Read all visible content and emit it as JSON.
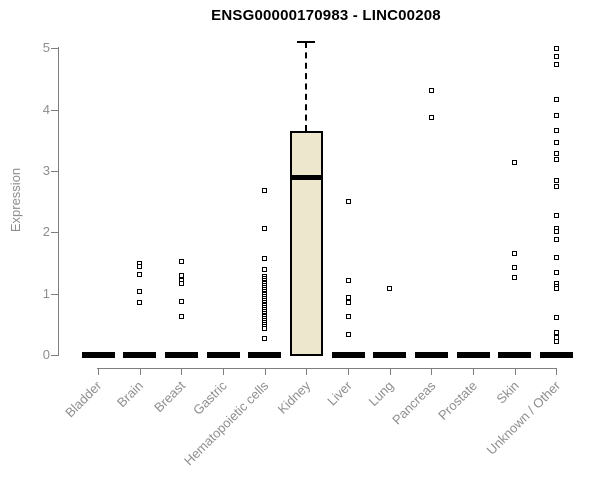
{
  "chart_data": {
    "type": "boxplot",
    "title": "ENSG00000170983 - LINC00208",
    "xlabel": "",
    "ylabel": "Expression",
    "yticks": [
      0,
      1,
      2,
      3,
      4,
      5
    ],
    "ylim": [
      0,
      5.15
    ],
    "grid": false,
    "legend": null,
    "box_fill_color": "#ece7cd",
    "box_stroke_color": "#000000",
    "axis_color": "#7e7e7e",
    "label_color": "#8e8e8e",
    "categories": [
      "Bladder",
      "Brain",
      "Breast",
      "Gastric",
      "Hematopoietic cells",
      "Kidney",
      "Liver",
      "Lung",
      "Pancreas",
      "Prostate",
      "Skin",
      "Unknown / Other"
    ],
    "series": [
      {
        "category": "Bladder",
        "q1": 0,
        "median": 0,
        "q3": 0,
        "whisker_low": 0,
        "whisker_high": 0,
        "outliers": []
      },
      {
        "category": "Brain",
        "q1": 0,
        "median": 0,
        "q3": 0,
        "whisker_low": 0,
        "whisker_high": 0,
        "outliers": [
          1.5,
          1.44,
          1.31,
          1.03,
          0.86
        ]
      },
      {
        "category": "Breast",
        "q1": 0,
        "median": 0,
        "q3": 0,
        "whisker_low": 0,
        "whisker_high": 0,
        "outliers": [
          1.52,
          1.29,
          1.21,
          1.17,
          0.87,
          0.62
        ]
      },
      {
        "category": "Gastric",
        "q1": 0,
        "median": 0,
        "q3": 0,
        "whisker_low": 0,
        "whisker_high": 0,
        "outliers": []
      },
      {
        "category": "Hematopoietic cells",
        "q1": 0,
        "median": 0,
        "q3": 0,
        "whisker_low": 0,
        "whisker_high": 0,
        "outliers": [
          2.68,
          2.07,
          1.58,
          1.39,
          1.28,
          1.25,
          1.22,
          1.19,
          1.16,
          1.13,
          1.1,
          1.07,
          1.04,
          1.01,
          0.98,
          0.95,
          0.92,
          0.89,
          0.86,
          0.83,
          0.8,
          0.77,
          0.74,
          0.71,
          0.68,
          0.65,
          0.62,
          0.59,
          0.56,
          0.53,
          0.5,
          0.47,
          0.44,
          0.27
        ]
      },
      {
        "category": "Kidney",
        "q1": 0,
        "median": 2.9,
        "q3": 3.65,
        "whisker_low": 0,
        "whisker_high": 5.1,
        "outliers": []
      },
      {
        "category": "Liver",
        "q1": 0,
        "median": 0,
        "q3": 0,
        "whisker_low": 0,
        "whisker_high": 0,
        "outliers": [
          2.5,
          1.21,
          0.93,
          0.85,
          0.62,
          0.34
        ]
      },
      {
        "category": "Lung",
        "q1": 0,
        "median": 0,
        "q3": 0,
        "whisker_low": 0,
        "whisker_high": 0,
        "outliers": [
          1.08
        ]
      },
      {
        "category": "Pancreas",
        "q1": 0,
        "median": 0,
        "q3": 0,
        "whisker_low": 0,
        "whisker_high": 0,
        "outliers": [
          4.31,
          3.87
        ]
      },
      {
        "category": "Prostate",
        "q1": 0,
        "median": 0,
        "q3": 0,
        "whisker_low": 0,
        "whisker_high": 0,
        "outliers": []
      },
      {
        "category": "Skin",
        "q1": 0,
        "median": 0,
        "q3": 0,
        "whisker_low": 0,
        "whisker_high": 0,
        "outliers": [
          3.14,
          1.66,
          1.42,
          1.26
        ]
      },
      {
        "category": "Unknown / Other",
        "q1": 0,
        "median": 0,
        "q3": 0,
        "whisker_low": 0,
        "whisker_high": 0,
        "outliers": [
          5.0,
          4.86,
          4.74,
          4.17,
          3.91,
          3.66,
          3.46,
          3.29,
          3.18,
          2.85,
          2.75,
          2.27,
          2.07,
          2.02,
          1.89,
          1.59,
          1.34,
          1.16,
          1.12,
          1.08,
          0.61,
          0.36,
          0.29,
          0.22
        ]
      }
    ]
  }
}
